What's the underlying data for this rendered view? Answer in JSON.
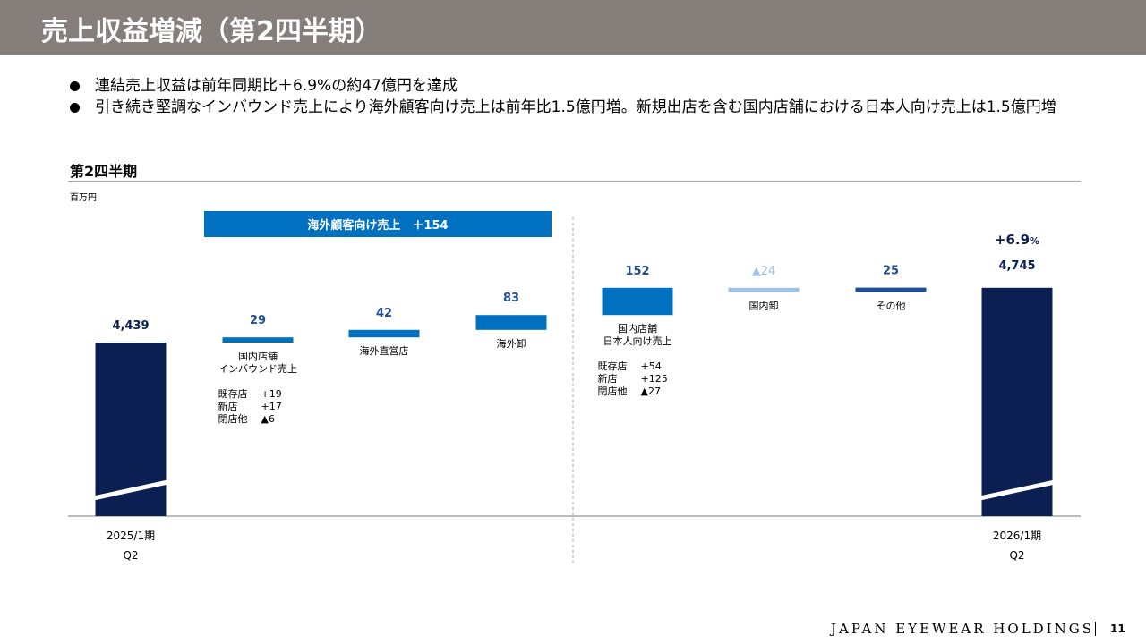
{
  "header": {
    "title": "売上収益増減（第2四半期）"
  },
  "bullets": [
    "連結売上収益は前年同期比＋6.9%の約47億円を達成",
    "引き続き堅調なインバウンド売上により海外顧客向け売上は前年比1.5億円増。新規出店を含む国内店舗における日本人向け売上は1.5億円増"
  ],
  "section": {
    "title": "第2四半期",
    "unit": "百万円"
  },
  "chart_data": {
    "type": "waterfall",
    "unit": "百万円",
    "start": {
      "period": "2025/1期",
      "quarter": "Q2",
      "value": 4439,
      "label": "4,439"
    },
    "end": {
      "period": "2026/1期",
      "quarter": "Q2",
      "value": 4745,
      "label": "4,745",
      "change_label": "+6.9",
      "change_suffix": "%"
    },
    "group_banner": "海外顧客向け売上　＋154",
    "steps": [
      {
        "category": [
          "国内店舗",
          "インバウンド売上"
        ],
        "value": 29,
        "label": "29",
        "color": "#0070c0",
        "breakdown": [
          {
            "name": "既存店",
            "value": "+19"
          },
          {
            "name": "新店",
            "value": "+17"
          },
          {
            "name": "閉店他",
            "value": "▲6"
          }
        ]
      },
      {
        "category": [
          "海外直営店"
        ],
        "value": 42,
        "label": "42",
        "color": "#0070c0",
        "breakdown": []
      },
      {
        "category": [
          "海外卸"
        ],
        "value": 83,
        "label": "83",
        "color": "#0070c0",
        "breakdown": []
      },
      {
        "category": [
          "国内店舗",
          "日本人向け売上"
        ],
        "value": 152,
        "label": "152",
        "color": "#0070c0",
        "breakdown": [
          {
            "name": "既存店",
            "value": "+54"
          },
          {
            "name": "新店",
            "value": "+125"
          },
          {
            "name": "閉店他",
            "value": "▲27"
          }
        ]
      },
      {
        "category": [
          "国内卸"
        ],
        "value": -24,
        "label": "24",
        "label_prefix": "▲",
        "color": "#9dc3e6",
        "breakdown": []
      },
      {
        "category": [
          "その他"
        ],
        "value": 25,
        "label": "25",
        "color": "#1f4e96",
        "breakdown": []
      }
    ],
    "colors": {
      "total": "#0b1f52",
      "increase": "#0070c0",
      "decrease": "#9dc3e6",
      "other": "#1f4e96",
      "value_text": "#1f4e96",
      "total_text": "#0b1f52"
    }
  },
  "footer": {
    "brand": "JAPAN EYEWEAR HOLDINGS",
    "page": "11"
  }
}
